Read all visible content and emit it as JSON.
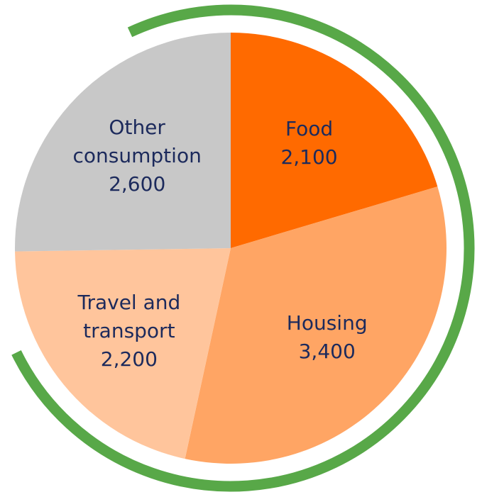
{
  "chart_data": {
    "type": "pie",
    "categories": [
      "Food",
      "Housing",
      "Travel and transport",
      "Other consumption"
    ],
    "values": [
      2100,
      3400,
      2200,
      2600
    ],
    "value_labels": [
      "2,100",
      "3,400",
      "2,200",
      "2,600"
    ],
    "colors": [
      "#ff6a00",
      "#ffa564",
      "#ffc59c",
      "#c8c8c8"
    ]
  }
}
